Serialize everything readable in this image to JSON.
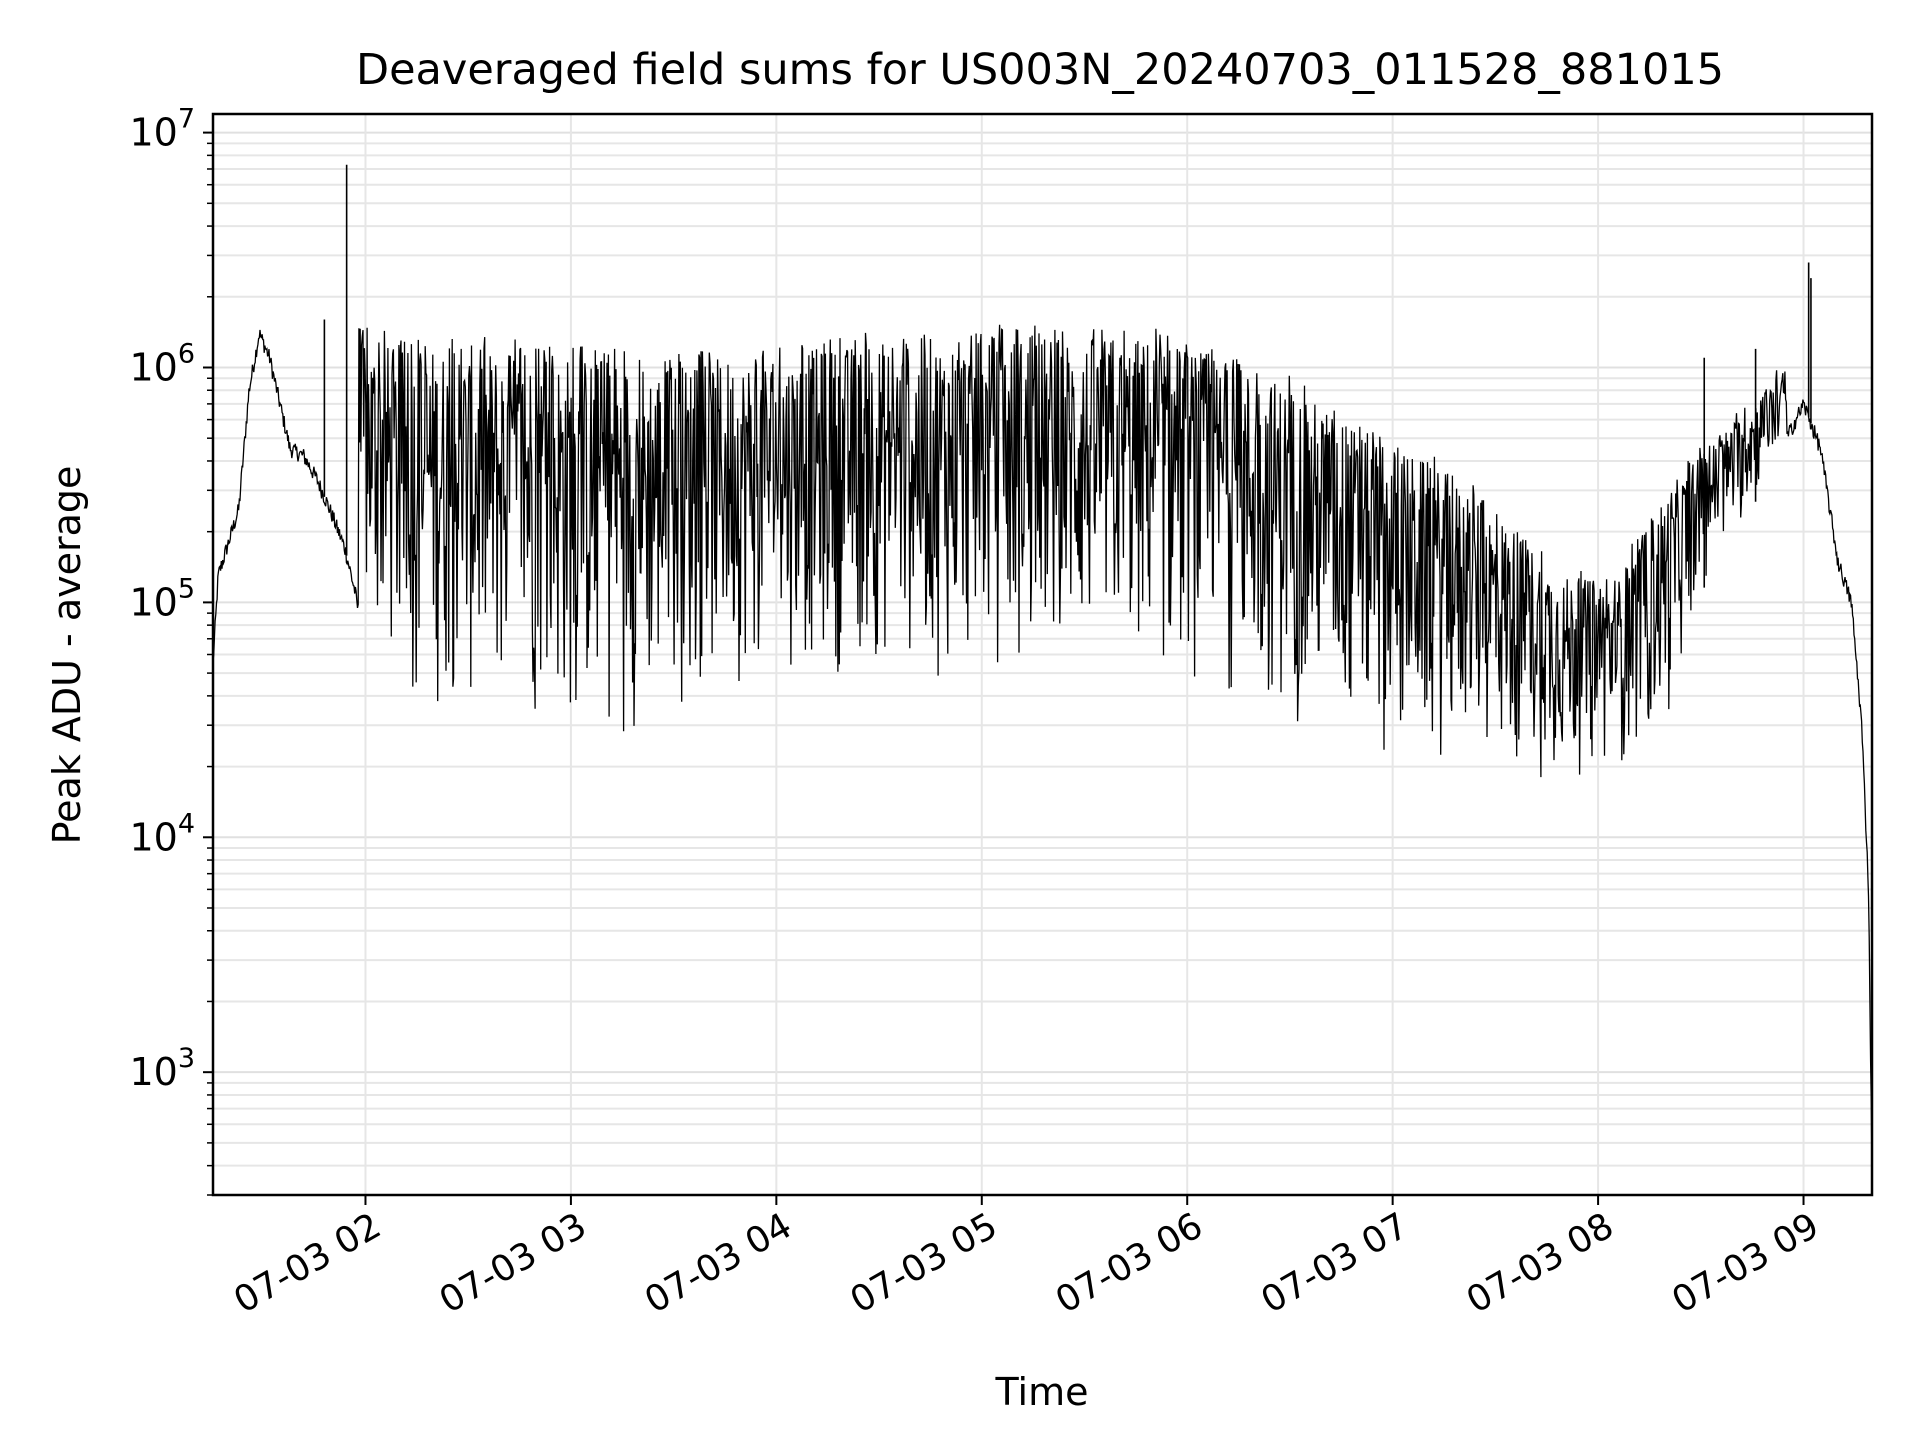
{
  "chart_data": {
    "type": "line",
    "title": "Deaveraged field sums for US003N_20240703_011528_881015",
    "xlabel": "Time",
    "ylabel": "Peak ADU - average",
    "yscale": "log",
    "xlim": [
      "2024-07-03T01:15:28",
      "2024-07-03T09:20:00"
    ],
    "ylim": [
      300,
      12000000
    ],
    "grid": true,
    "x_ticks": [
      {
        "t": "2024-07-03T02:00",
        "label": "07-03 02"
      },
      {
        "t": "2024-07-03T03:00",
        "label": "07-03 03"
      },
      {
        "t": "2024-07-03T04:00",
        "label": "07-03 04"
      },
      {
        "t": "2024-07-03T05:00",
        "label": "07-03 05"
      },
      {
        "t": "2024-07-03T06:00",
        "label": "07-03 06"
      },
      {
        "t": "2024-07-03T07:00",
        "label": "07-03 07"
      },
      {
        "t": "2024-07-03T08:00",
        "label": "07-03 08"
      },
      {
        "t": "2024-07-03T09:00",
        "label": "07-03 09"
      }
    ],
    "y_ticks": [
      {
        "v": 1000,
        "base": "10",
        "exp": "3"
      },
      {
        "v": 10000,
        "base": "10",
        "exp": "4"
      },
      {
        "v": 100000,
        "base": "10",
        "exp": "5"
      },
      {
        "v": 1000000,
        "base": "10",
        "exp": "6"
      },
      {
        "v": 10000000,
        "base": "10",
        "exp": "7"
      }
    ],
    "series": [
      {
        "color": "#000000",
        "points": [
          [
            "2024-07-03T01:15:28",
            55000
          ],
          [
            "2024-07-03T01:17:00",
            130000
          ],
          [
            "2024-07-03T01:20:00",
            180000
          ],
          [
            "2024-07-03T01:23:00",
            250000
          ],
          [
            "2024-07-03T01:26:00",
            800000
          ],
          [
            "2024-07-03T01:29:00",
            1400000
          ],
          [
            "2024-07-03T01:32:00",
            1100000
          ],
          [
            "2024-07-03T01:35:00",
            700000
          ],
          [
            "2024-07-03T01:38:00",
            450000
          ],
          [
            "2024-07-03T01:42:00",
            420000
          ],
          [
            "2024-07-03T01:46:00",
            330000
          ],
          [
            "2024-07-03T01:50:00",
            240000
          ],
          [
            "2024-07-03T01:54:00",
            170000
          ],
          [
            "2024-07-03T01:57:00",
            110000
          ],
          [
            "2024-07-03T02:00:00",
            60000
          ],
          [
            "2024-07-03T02:05:00",
            42000
          ],
          [
            "2024-07-03T02:10:00",
            32000
          ],
          [
            "2024-07-03T02:20:00",
            30000
          ],
          [
            "2024-07-03T02:30:00",
            28000
          ],
          [
            "2024-07-03T02:40:00",
            26000
          ],
          [
            "2024-07-03T02:50:00",
            25000
          ],
          [
            "2024-07-03T03:00:00",
            24000
          ],
          [
            "2024-07-03T03:15:00",
            25000
          ],
          [
            "2024-07-03T03:30:00",
            28000
          ],
          [
            "2024-07-03T03:45:00",
            40000
          ],
          [
            "2024-07-03T04:00:00",
            48000
          ],
          [
            "2024-07-03T04:30:00",
            45000
          ],
          [
            "2024-07-03T05:00:00",
            43000
          ],
          [
            "2024-07-03T05:30:00",
            45000
          ],
          [
            "2024-07-03T05:50:00",
            42000
          ],
          [
            "2024-07-03T06:05:00",
            38000
          ],
          [
            "2024-07-03T06:20:00",
            33000
          ],
          [
            "2024-07-03T06:35:00",
            27000
          ],
          [
            "2024-07-03T06:50:00",
            23000
          ],
          [
            "2024-07-03T07:00:00",
            20000
          ],
          [
            "2024-07-03T07:15:00",
            19000
          ],
          [
            "2024-07-03T07:30:00",
            18000
          ],
          [
            "2024-07-03T07:45:00",
            17000
          ],
          [
            "2024-07-03T08:00:00",
            17000
          ],
          [
            "2024-07-03T08:10:00",
            20000
          ],
          [
            "2024-07-03T08:20:00",
            26000
          ],
          [
            "2024-07-03T08:25:00",
            60000
          ],
          [
            "2024-07-03T08:30:00",
            110000
          ],
          [
            "2024-07-03T08:40:00",
            180000
          ],
          [
            "2024-07-03T08:50:00",
            350000
          ],
          [
            "2024-07-03T09:00:00",
            700000
          ],
          [
            "2024-07-03T09:05:00",
            450000
          ],
          [
            "2024-07-03T09:10:00",
            150000
          ],
          [
            "2024-07-03T09:14:00",
            100000
          ],
          [
            "2024-07-03T09:17:00",
            30000
          ],
          [
            "2024-07-03T09:19:00",
            6000
          ],
          [
            "2024-07-03T09:20:00",
            400
          ]
        ],
        "upper": [
          [
            "2024-07-03T01:58:00",
            1500000
          ],
          [
            "2024-07-03T02:10:00",
            1200000
          ],
          [
            "2024-07-03T02:30:00",
            1250000
          ],
          [
            "2024-07-03T03:00:00",
            1150000
          ],
          [
            "2024-07-03T03:30:00",
            1050000
          ],
          [
            "2024-07-03T04:00:00",
            1150000
          ],
          [
            "2024-07-03T04:30:00",
            1300000
          ],
          [
            "2024-07-03T05:00:00",
            1400000
          ],
          [
            "2024-07-03T05:30:00",
            1350000
          ],
          [
            "2024-07-03T05:50:00",
            1350000
          ],
          [
            "2024-07-03T06:10:00",
            1100000
          ],
          [
            "2024-07-03T06:30:00",
            850000
          ],
          [
            "2024-07-03T06:50:00",
            550000
          ],
          [
            "2024-07-03T07:10:00",
            400000
          ],
          [
            "2024-07-03T07:30:00",
            250000
          ],
          [
            "2024-07-03T07:50:00",
            130000
          ],
          [
            "2024-07-03T08:05:00",
            120000
          ],
          [
            "2024-07-03T08:20:00",
            300000
          ],
          [
            "2024-07-03T08:40:00",
            600000
          ],
          [
            "2024-07-03T08:55:00",
            1000000
          ]
        ],
        "spikes": [
          [
            "2024-07-03T01:54:30",
            7300000
          ],
          [
            "2024-07-03T09:01:30",
            2800000
          ],
          [
            "2024-07-03T09:02:10",
            2400000
          ],
          [
            "2024-07-03T01:48:00",
            1600000
          ],
          [
            "2024-07-03T08:31:00",
            1100000
          ],
          [
            "2024-07-03T08:46:00",
            1200000
          ]
        ]
      }
    ]
  }
}
